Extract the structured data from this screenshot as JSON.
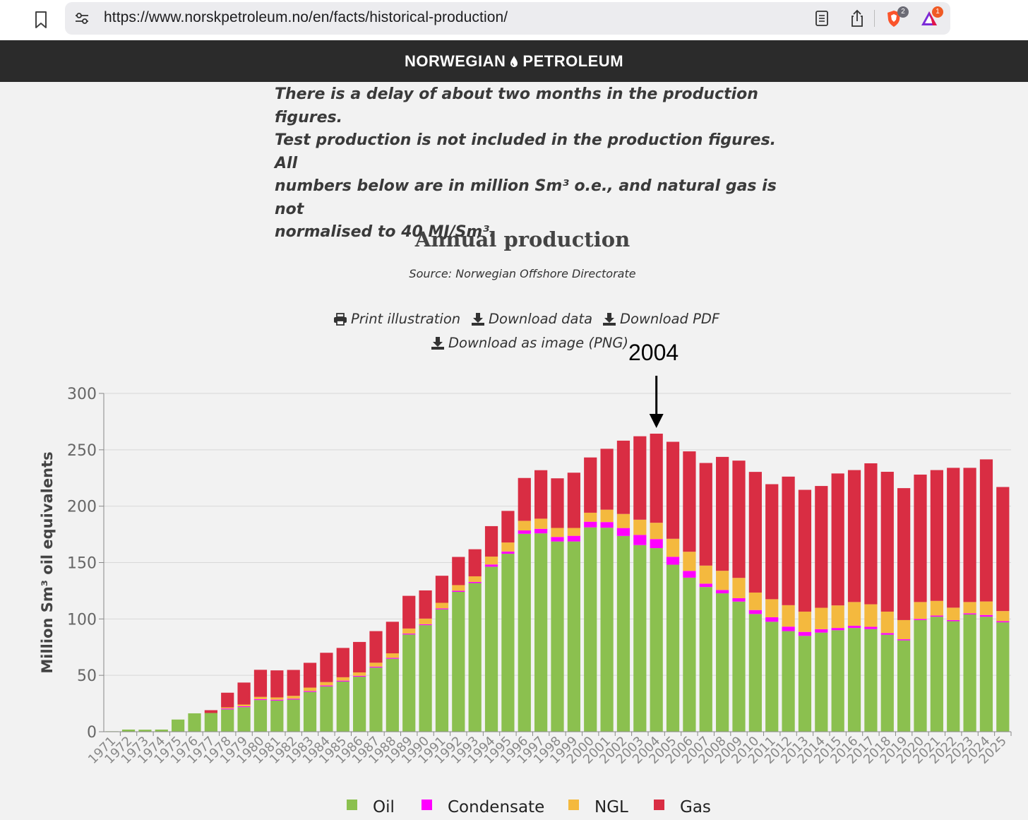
{
  "browser": {
    "url": "https://www.norskpetroleum.no/en/facts/historical-production/",
    "brave_badge": "2",
    "rewards_badge": "1"
  },
  "site": {
    "logo_left": "NORWEGIAN",
    "logo_right": "PETROLEUM"
  },
  "intro": {
    "line1": "There is a delay of about two months in the production figures.",
    "line2": "Test production is not included in the production figures. All",
    "line3": "numbers below are in million Sm³ o.e., and natural gas is not",
    "line4": "normalised to 40 MJ/Sm³."
  },
  "actions": {
    "print": "Print illustration",
    "download_data": "Download data",
    "download_pdf": "Download PDF",
    "download_png": "Download as image (PNG)"
  },
  "annotation": {
    "label": "2004"
  },
  "colors": {
    "oil": "#8bc04f",
    "condensate": "#ff00ff",
    "ngl": "#f4b93e",
    "gas": "#d92d43"
  },
  "chart_data": {
    "type": "bar",
    "stacked": true,
    "title": "Annual production",
    "subtitle": "Source: Norwegian Offshore Directorate",
    "xlabel": "",
    "ylabel": "Million Sm³ oil equivalents",
    "ylim": [
      0,
      300
    ],
    "yticks": [
      0,
      50,
      100,
      150,
      200,
      250,
      300
    ],
    "grid": true,
    "legend_position": "bottom",
    "categories": [
      "1971",
      "1972",
      "1973",
      "1974",
      "1975",
      "1976",
      "1977",
      "1978",
      "1979",
      "1980",
      "1981",
      "1982",
      "1983",
      "1984",
      "1985",
      "1986",
      "1987",
      "1988",
      "1989",
      "1990",
      "1991",
      "1992",
      "1993",
      "1994",
      "1995",
      "1996",
      "1997",
      "1998",
      "1999",
      "2000",
      "2001",
      "2002",
      "2003",
      "2004",
      "2005",
      "2006",
      "2007",
      "2008",
      "2009",
      "2010",
      "2011",
      "2012",
      "2013",
      "2014",
      "2015",
      "2016",
      "2017",
      "2018",
      "2019",
      "2020",
      "2021",
      "2022",
      "2023",
      "2024",
      "2025"
    ],
    "series": [
      {
        "name": "Oil",
        "values": [
          0.4,
          1.9,
          1.8,
          1.9,
          10.8,
          16.3,
          16.6,
          19.8,
          21.8,
          28.1,
          27.6,
          28.5,
          35.3,
          40.2,
          44.5,
          48.8,
          56.9,
          64.7,
          86.2,
          94.5,
          108.5,
          124.0,
          131.8,
          146.3,
          157.8,
          175.5,
          175.9,
          168.7,
          168.7,
          181.2,
          180.9,
          173.6,
          165.5,
          162.8,
          148.1,
          136.6,
          128.3,
          122.7,
          115.4,
          104.4,
          97.5,
          89.2,
          85.0,
          87.9,
          90.0,
          92.0,
          91.0,
          86.0,
          81.0,
          99.0,
          102.0,
          98.0,
          104.0,
          102.0,
          97.0
        ]
      },
      {
        "name": "Condensate",
        "values": [
          0,
          0,
          0,
          0,
          0,
          0,
          0,
          0.8,
          0.8,
          0.8,
          0.8,
          0.8,
          0.8,
          0.8,
          0.8,
          0.8,
          0.8,
          0.8,
          0.8,
          0.8,
          0.8,
          1.0,
          1.0,
          2.0,
          2.0,
          3.0,
          4.0,
          4.0,
          5.0,
          5.0,
          5.0,
          7.0,
          9.0,
          8.0,
          7.0,
          6.0,
          3.0,
          3.0,
          3.0,
          3.5,
          4.0,
          4.0,
          3.5,
          3.0,
          2.0,
          2.0,
          2.0,
          1.5,
          1.0,
          1.0,
          1.0,
          1.0,
          1.0,
          1.5,
          1.0
        ]
      },
      {
        "name": "NGL",
        "values": [
          0,
          0,
          0,
          0,
          0,
          0,
          0,
          1.0,
          1.5,
          2.0,
          2.0,
          2.5,
          3.0,
          3.0,
          3.0,
          3.0,
          3.5,
          4.0,
          4.5,
          5.0,
          5.0,
          5.0,
          5.0,
          7.0,
          8.0,
          8.5,
          9.0,
          8.0,
          7.0,
          8.0,
          11.0,
          12.5,
          13.5,
          14.5,
          16.0,
          17.0,
          16.0,
          17.0,
          18.0,
          15.5,
          16.0,
          19.0,
          18.0,
          19.0,
          20.0,
          21.0,
          20.0,
          19.0,
          17.0,
          15.0,
          13.0,
          11.0,
          10.0,
          12.0,
          9.0
        ]
      },
      {
        "name": "Gas",
        "values": [
          0,
          0,
          0,
          0,
          0,
          0,
          2.5,
          13.0,
          19.5,
          24.0,
          24.0,
          23.0,
          22.0,
          26.0,
          26.0,
          27.0,
          28.0,
          28.0,
          29.0,
          25.0,
          24.0,
          25.0,
          24.0,
          27.0,
          28.0,
          38.0,
          43.0,
          44.0,
          49.0,
          49.0,
          54.0,
          65.0,
          74.0,
          79.0,
          86.0,
          89.0,
          91.0,
          101.0,
          104.0,
          107.0,
          102.0,
          114.0,
          108.0,
          108.0,
          117.0,
          117.0,
          125.0,
          124.0,
          117.0,
          113.0,
          116.0,
          124.0,
          119.0,
          126.0,
          110.0
        ]
      }
    ]
  }
}
